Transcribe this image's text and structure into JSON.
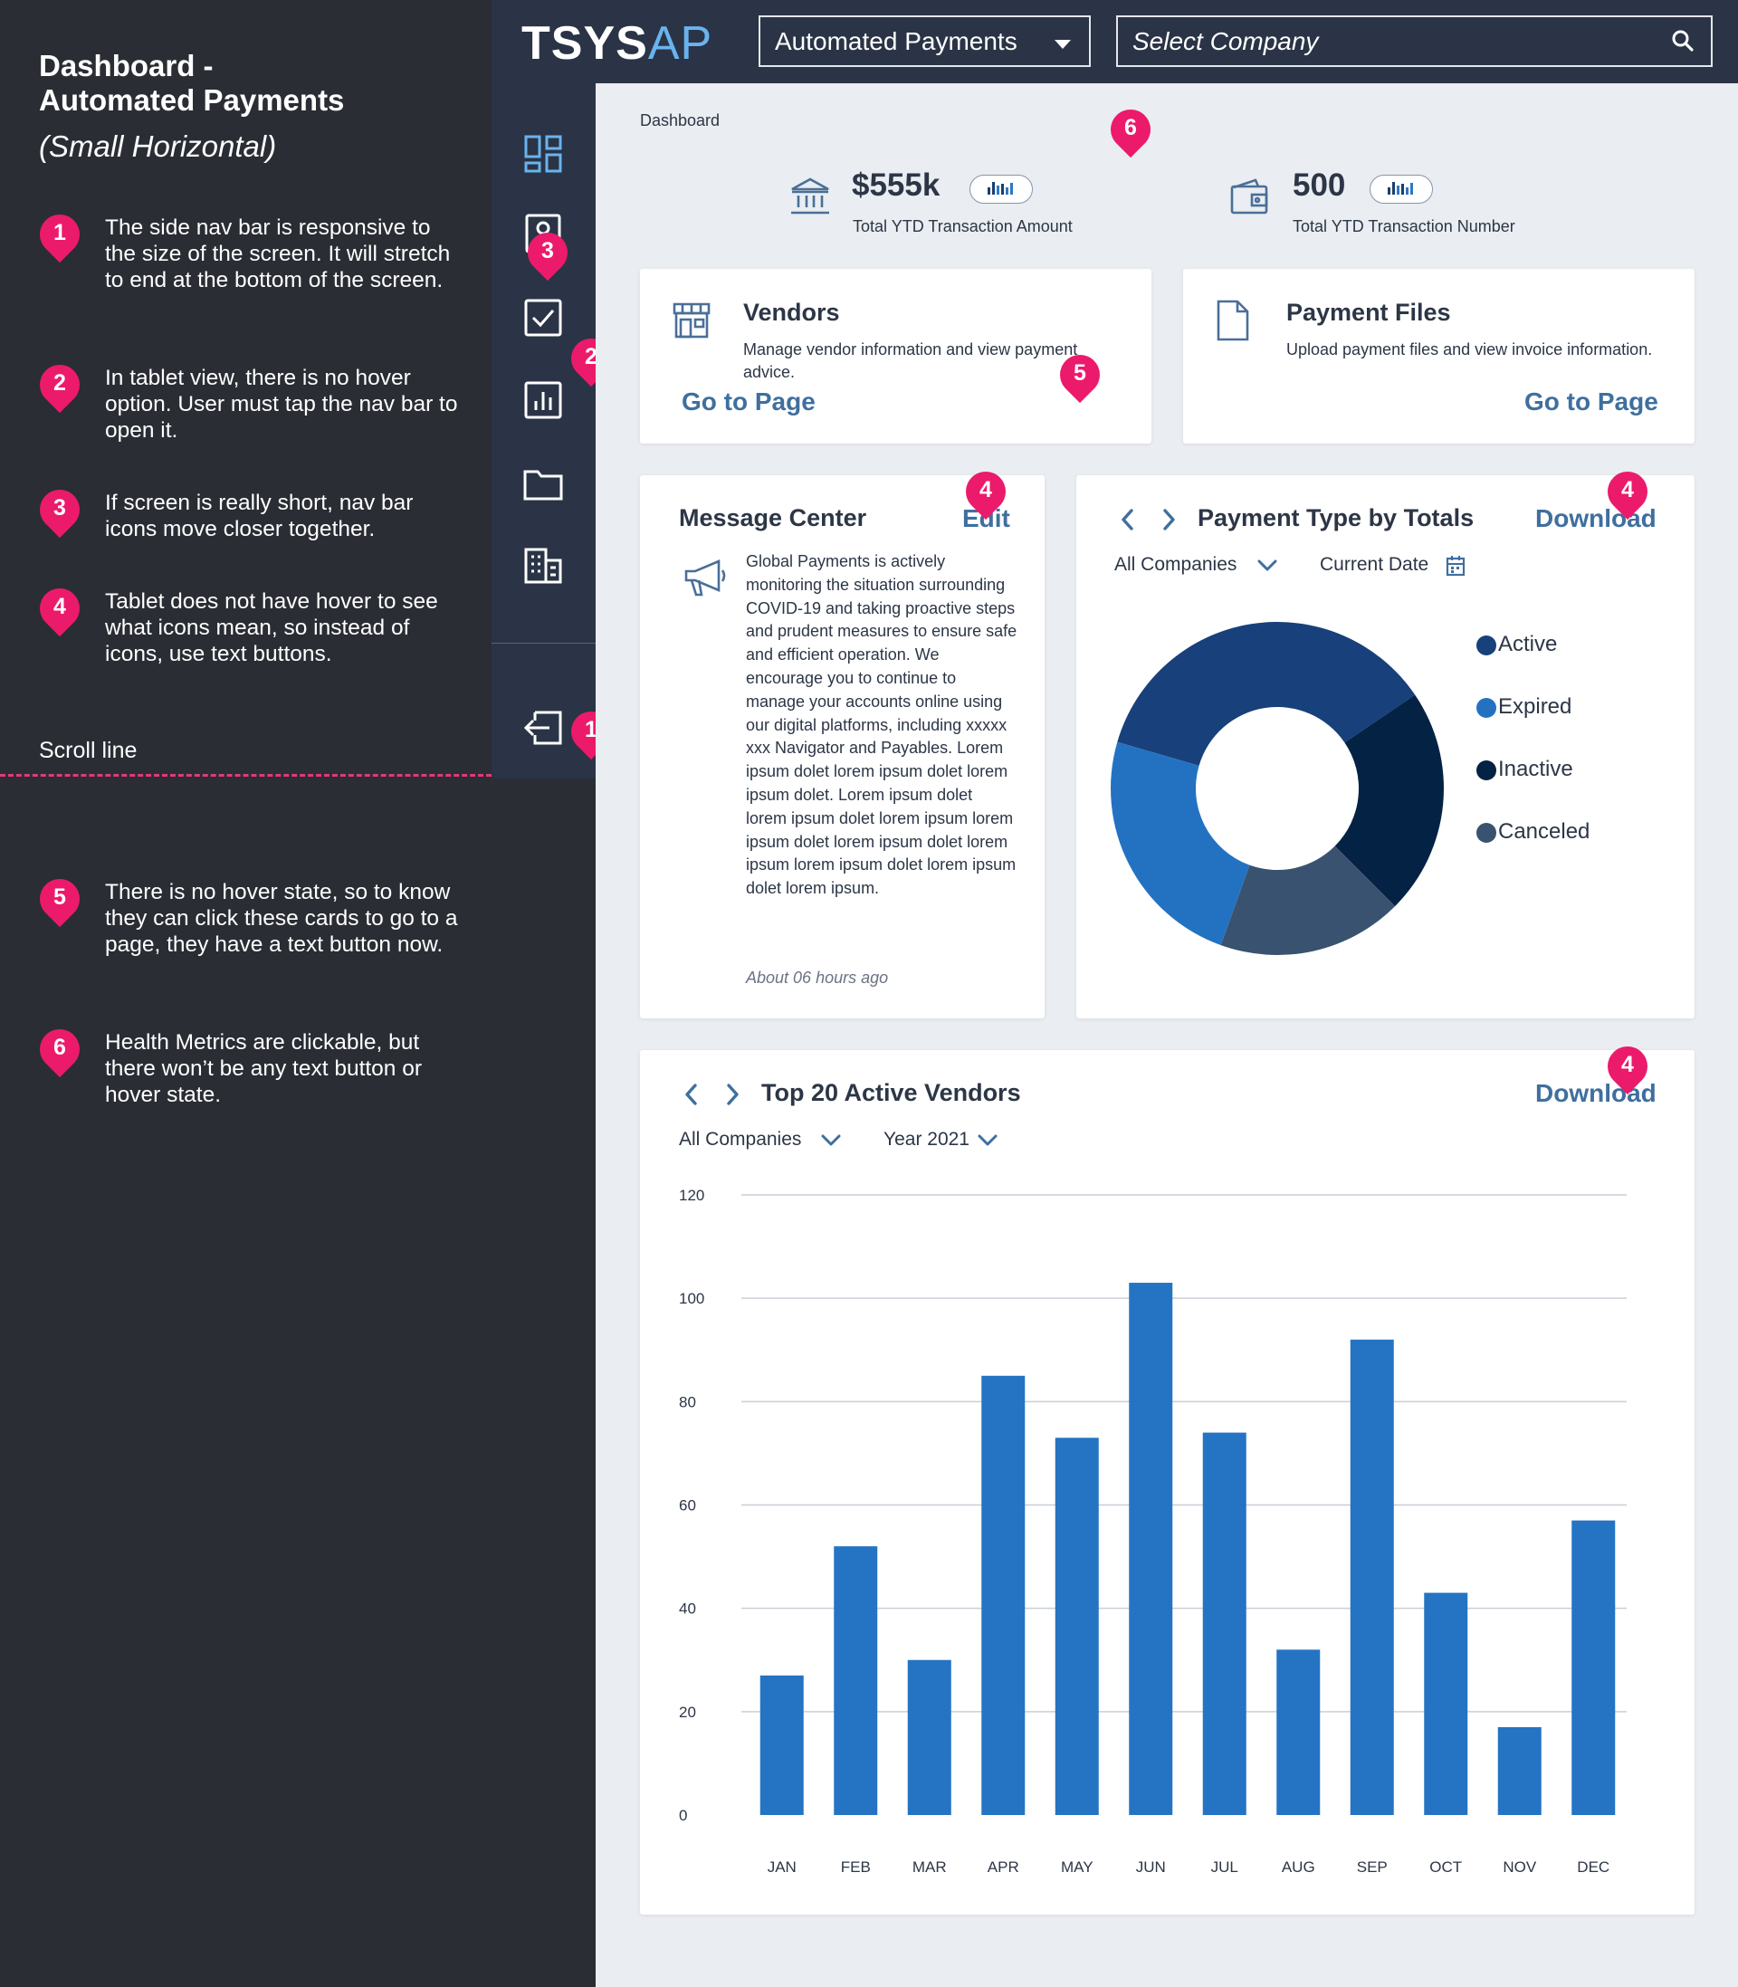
{
  "notes": {
    "title_line1": "Dashboard -",
    "title_line2": "Automated Payments",
    "subtitle": "(Small Horizontal)",
    "items": [
      {
        "num": "1",
        "text": "The side nav bar is responsive to the size of the screen. It will stretch to end at the bottom of the screen."
      },
      {
        "num": "2",
        "text": "In tablet view, there is no hover option. User must tap the nav bar to open it."
      },
      {
        "num": "3",
        "text": "If screen is really short, nav bar icons move closer together."
      },
      {
        "num": "4",
        "text": "Tablet does not have hover to see what icons mean, so instead of icons, use text buttons."
      },
      {
        "num": "5",
        "text": "There is no hover state, so to know they can click these cards to go to a page, they have a text button now."
      },
      {
        "num": "6",
        "text": "Health Metrics are clickable, but there won’t be any text button or hover state."
      }
    ],
    "scroll_line_label": "Scroll line"
  },
  "header": {
    "logo_main": "TSYS",
    "logo_accent": "AP",
    "app_selector": "Automated Payments",
    "company_placeholder": "Select Company"
  },
  "breadcrumb": "Dashboard",
  "metrics": [
    {
      "value": "$555k",
      "label": "Total YTD Transaction Amount",
      "icon": "bank-icon"
    },
    {
      "value": "500",
      "label": "Total YTD Transaction Number",
      "icon": "wallet-icon"
    }
  ],
  "cards": {
    "vendors": {
      "title": "Vendors",
      "desc": "Manage vendor information and view payment advice.",
      "action": "Go to Page",
      "icon": "store-icon"
    },
    "payment_files": {
      "title": "Payment Files",
      "desc": "Upload payment files and view invoice information.",
      "action": "Go to Page",
      "icon": "file-icon"
    }
  },
  "message_center": {
    "title": "Message Center",
    "action": "Edit",
    "icon": "megaphone-icon",
    "body": "Global Payments is actively monitoring the situation surrounding COVID-19 and taking proactive steps and prudent measures to ensure safe and efficient operation. We encourage you to continue to manage your accounts online using our digital platforms, including xxxxx xxx Navigator and Payables. Lorem ipsum dolet lorem ipsum dolet lorem ipsum dolet. Lorem ipsum dolet lorem ipsum dolet lorem ipsum lorem ipsum dolet lorem ipsum dolet lorem ipsum lorem ipsum dolet lorem ipsum dolet lorem ipsum.",
    "time": "About 06 hours ago"
  },
  "payment_type": {
    "title": "Payment Type by Totals",
    "action": "Download",
    "filter_company": "All Companies",
    "filter_date": "Current Date"
  },
  "top_vendors": {
    "title": "Top 20 Active Vendors",
    "action": "Download",
    "filter_company": "All Companies",
    "filter_year": "Year 2021"
  },
  "chart_data": [
    {
      "type": "pie",
      "donut": true,
      "categories": [
        "Active",
        "Inactive",
        "Canceled",
        "Expired"
      ],
      "values": [
        36,
        22,
        18,
        24
      ],
      "colors": {
        "Active": "#18407a",
        "Expired": "#2372c2",
        "Inactive": "#042244",
        "Canceled": "#39526f"
      },
      "legend": [
        "Active",
        "Expired",
        "Inactive",
        "Canceled"
      ],
      "legend_placement": "right"
    },
    {
      "type": "bar",
      "categories": [
        "JAN",
        "FEB",
        "MAR",
        "APR",
        "MAY",
        "JUN",
        "JUL",
        "AUG",
        "SEP",
        "OCT",
        "NOV",
        "DEC"
      ],
      "values": [
        27,
        52,
        30,
        85,
        73,
        103,
        74,
        32,
        92,
        43,
        17,
        57
      ],
      "ylim": [
        0,
        120
      ],
      "yticks": [
        0,
        20,
        40,
        60,
        80,
        100,
        120
      ],
      "grid": true,
      "color": "#2474c3"
    }
  ]
}
